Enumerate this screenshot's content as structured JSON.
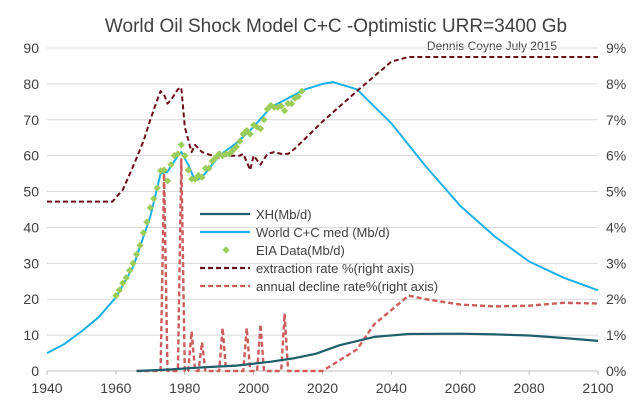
{
  "chart_data": {
    "type": "line",
    "title": "World Oil Shock Model C+C -Optimistic URR=3400 Gb",
    "subtitle": "Dennis Coyne July 2015",
    "xlim": [
      1940,
      2100
    ],
    "x_ticks": [
      1940,
      1960,
      1980,
      2000,
      2020,
      2040,
      2060,
      2080,
      2100
    ],
    "ylim_left": [
      0,
      90
    ],
    "y_left_ticks": [
      0,
      10,
      20,
      30,
      40,
      50,
      60,
      70,
      80,
      90
    ],
    "ylim_right": [
      0,
      9
    ],
    "y_right_ticks": [
      "0%",
      "1%",
      "2%",
      "3%",
      "4%",
      "5%",
      "6%",
      "7%",
      "8%",
      "9%"
    ],
    "grid": "horizontal",
    "legend_position": "center",
    "series": [
      {
        "name": "XH(Mb/d)",
        "axis": "left",
        "color": "#1f5f6b",
        "style": "solid",
        "x": [
          1966,
          1975,
          1985,
          1995,
          2005,
          2012,
          2018,
          2025,
          2035,
          2045,
          2060,
          2070,
          2080,
          2090,
          2100
        ],
        "y": [
          0.0,
          0.4,
          1.0,
          1.5,
          2.6,
          3.6,
          4.8,
          7.2,
          9.5,
          10.3,
          10.4,
          10.2,
          9.9,
          9.2,
          8.4
        ]
      },
      {
        "name": "World C+C med (Mb/d)",
        "axis": "left",
        "color": "#1ab0e8",
        "style": "solid",
        "x": [
          1940,
          1945,
          1950,
          1955,
          1960,
          1965,
          1970,
          1973,
          1975,
          1978,
          1979,
          1981,
          1983,
          1985,
          1990,
          1995,
          2000,
          2005,
          2010,
          2015,
          2020,
          2023,
          2030,
          2040,
          2050,
          2060,
          2070,
          2080,
          2090,
          2100
        ],
        "y": [
          5.0,
          7.5,
          11.0,
          15.0,
          20.5,
          29.0,
          43.0,
          55.0,
          55.5,
          60.0,
          61.0,
          57.5,
          53.0,
          54.0,
          60.0,
          63.5,
          68.0,
          73.5,
          76.0,
          78.5,
          80.0,
          80.5,
          78.5,
          69.0,
          57.0,
          46.0,
          37.5,
          30.5,
          26.0,
          22.5
        ]
      },
      {
        "name": "EIA Data(Mb/d)",
        "axis": "left",
        "color": "#9ccc5a",
        "style": "markers",
        "x": [
          1960,
          1961,
          1962,
          1963,
          1964,
          1965,
          1966,
          1967,
          1968,
          1969,
          1970,
          1971,
          1972,
          1973,
          1974,
          1975,
          1976,
          1977,
          1978,
          1979,
          1980,
          1981,
          1982,
          1983,
          1984,
          1985,
          1986,
          1987,
          1988,
          1989,
          1990,
          1991,
          1992,
          1993,
          1994,
          1995,
          1996,
          1997,
          1998,
          1999,
          2000,
          2001,
          2002,
          2003,
          2004,
          2005,
          2006,
          2007,
          2008,
          2009,
          2010,
          2011,
          2012,
          2013,
          2014
        ],
        "y": [
          21.0,
          22.5,
          24.5,
          26.0,
          28.0,
          30.0,
          32.5,
          35.0,
          38.5,
          41.5,
          45.5,
          48.0,
          51.0,
          55.8,
          56.0,
          53.0,
          57.5,
          60.0,
          60.5,
          63.0,
          60.0,
          56.0,
          53.5,
          53.5,
          54.5,
          54.0,
          56.5,
          56.5,
          58.5,
          59.5,
          60.5,
          60.0,
          60.5,
          60.5,
          61.5,
          62.5,
          64.0,
          66.0,
          67.0,
          66.0,
          68.5,
          68.0,
          67.5,
          70.0,
          73.0,
          74.0,
          73.5,
          73.5,
          73.8,
          72.5,
          74.5,
          74.5,
          76.0,
          76.5,
          78.0
        ]
      },
      {
        "name": "extraction rate %(right axis)",
        "axis": "right",
        "color": "#6b0f1a",
        "style": "dashed",
        "x": [
          1940,
          1959,
          1962,
          1965,
          1968,
          1970,
          1972,
          1973,
          1974,
          1975,
          1976,
          1977,
          1978,
          1979,
          1980,
          1982,
          1983,
          1985,
          1988,
          1990,
          1992,
          1994,
          1996,
          1997,
          1999,
          2000,
          2002,
          2004,
          2006,
          2008,
          2010,
          2012,
          2020,
          2030,
          2040,
          2045,
          2060,
          2080,
          2100
        ],
        "y": [
          4.72,
          4.72,
          5.05,
          5.7,
          6.4,
          7.0,
          7.55,
          7.8,
          7.7,
          7.45,
          7.55,
          7.7,
          7.85,
          7.9,
          6.8,
          6.1,
          6.3,
          6.1,
          6.0,
          5.95,
          6.0,
          6.0,
          6.0,
          6.05,
          5.6,
          6.0,
          5.75,
          6.05,
          6.1,
          6.05,
          6.05,
          6.2,
          6.95,
          7.8,
          8.62,
          8.75,
          8.75,
          8.75,
          8.75
        ]
      },
      {
        "name": "annual decline rate%(right axis)",
        "axis": "right",
        "color": "#cd5c5c",
        "style": "dashed",
        "x": [
          1966,
          1973,
          1974,
          1975,
          1976,
          1978,
          1979,
          1980,
          1981,
          1982,
          1983,
          1984,
          1985,
          1986,
          1990,
          1991,
          1992,
          1997,
          1998,
          1999,
          2001,
          2002,
          2003,
          2008,
          2009,
          2010,
          2020,
          2025,
          2030,
          2035,
          2040,
          2045,
          2050,
          2060,
          2070,
          2080,
          2090,
          2100
        ],
        "y": [
          0.0,
          0.0,
          5.5,
          0.0,
          0.0,
          0.0,
          5.9,
          0.0,
          0.0,
          1.1,
          0.0,
          0.0,
          0.8,
          0.0,
          0.0,
          1.2,
          0.0,
          0.0,
          1.2,
          0.0,
          0.0,
          1.3,
          0.0,
          0.0,
          1.6,
          0.0,
          0.0,
          0.3,
          0.6,
          1.3,
          1.7,
          2.1,
          2.0,
          1.85,
          1.8,
          1.82,
          1.9,
          1.88
        ]
      }
    ]
  }
}
